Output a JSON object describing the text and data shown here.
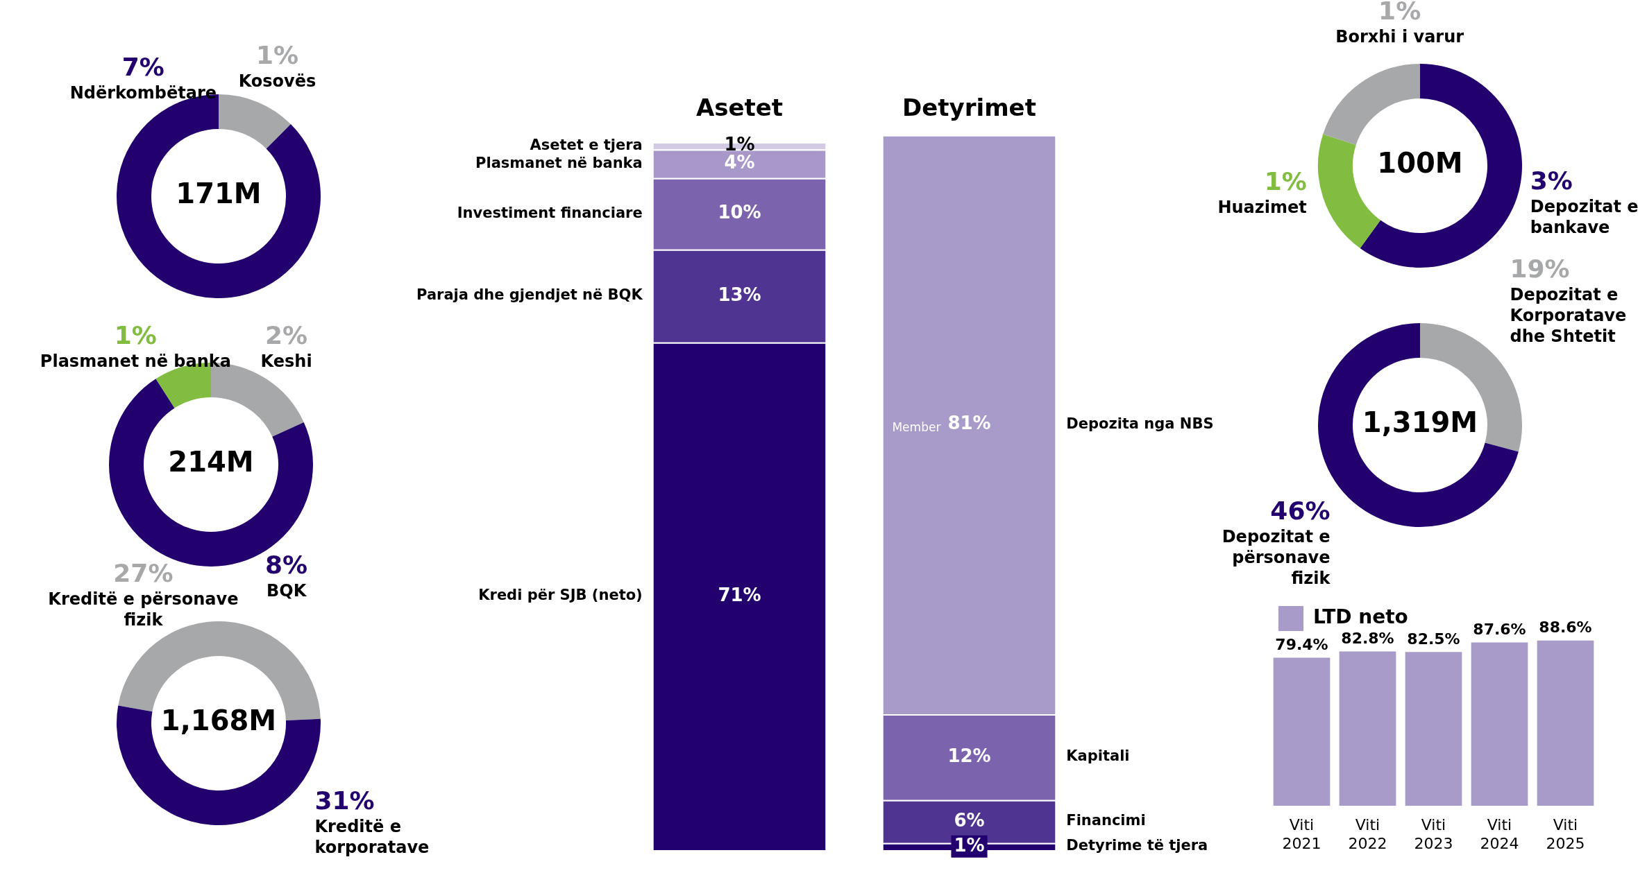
{
  "chart_data": [
    {
      "type": "donut",
      "title": "171M",
      "categories": [
        "Kosovës",
        "Ndërkombëtare"
      ],
      "values": [
        1,
        7
      ],
      "value_labels": [
        "1%",
        "7%"
      ],
      "colors": [
        "#a7a8aa",
        "#22006e"
      ]
    },
    {
      "type": "donut",
      "title": "214M",
      "categories": [
        "Keshi",
        "BQK",
        "Plasmanet në banka"
      ],
      "values": [
        2,
        8,
        1
      ],
      "value_labels": [
        "2%",
        "8%",
        "1%"
      ],
      "colors": [
        "#a7a8aa",
        "#22006e",
        "#82bd41"
      ]
    },
    {
      "type": "donut",
      "title": "1,168M",
      "categories": [
        "Kreditë e përsonave fizik",
        "Kreditë e korporatave"
      ],
      "values": [
        27,
        31
      ],
      "value_labels": [
        "27%",
        "31%"
      ],
      "colors": [
        "#a7a8aa",
        "#22006e"
      ]
    },
    {
      "type": "bar",
      "stacked": true,
      "categories": [
        "Asetet",
        "Detyrimet"
      ],
      "annotations": [
        "Member"
      ],
      "series": [
        {
          "name": "Kredi për SJB (neto)",
          "color": "#22006e",
          "values": [
            71,
            null
          ],
          "value_labels": [
            "71%",
            null
          ]
        },
        {
          "name": "Paraja dhe gjendjet në BQK",
          "color": "#4f3591",
          "values": [
            13,
            null
          ],
          "value_labels": [
            "13%",
            null
          ]
        },
        {
          "name": "Investiment financiare",
          "color": "#7b63ad",
          "values": [
            10,
            null
          ],
          "value_labels": [
            "10%",
            null
          ]
        },
        {
          "name": "Plasmanet në banka",
          "color": "#a897c9",
          "values": [
            4,
            null
          ],
          "value_labels": [
            "4%",
            null
          ]
        },
        {
          "name": "Asetet e tjera",
          "color": "#d3cbe4",
          "values": [
            1,
            null
          ],
          "value_labels": [
            "1%",
            null
          ]
        },
        {
          "name": "Detyrime të tjera",
          "color": "#22006e",
          "values": [
            null,
            1
          ],
          "value_labels": [
            null,
            "1%"
          ]
        },
        {
          "name": "Financimi",
          "color": "#4f3591",
          "values": [
            null,
            6
          ],
          "value_labels": [
            null,
            "6%"
          ]
        },
        {
          "name": "Kapitali",
          "color": "#7b63ad",
          "values": [
            null,
            12
          ],
          "value_labels": [
            null,
            "12%"
          ]
        },
        {
          "name": "Depozita nga NBS",
          "color": "#a89bc9",
          "values": [
            null,
            81
          ],
          "value_labels": [
            null,
            "81%"
          ]
        }
      ]
    },
    {
      "type": "donut",
      "title": "100M",
      "categories": [
        "Depozitat e bankave",
        "Huazimet",
        "Borxhi i varur"
      ],
      "values": [
        3,
        1,
        1
      ],
      "value_labels": [
        "3%",
        "1%",
        "1%"
      ],
      "colors": [
        "#22006e",
        "#82bd41",
        "#a7a8aa"
      ]
    },
    {
      "type": "donut",
      "title": "1,319M",
      "categories": [
        "Depozitat e Korporatave dhe Shtetit",
        "Depozitat e përsonave fizik"
      ],
      "values": [
        19,
        46
      ],
      "value_labels": [
        "19%",
        "46%"
      ],
      "colors": [
        "#a7a8aa",
        "#22006e"
      ]
    },
    {
      "type": "bar",
      "legend": "top left",
      "categories": [
        "Viti 2021",
        "Viti 2022",
        "Viti 2023",
        "Viti 2024",
        "Viti 2025"
      ],
      "series": [
        {
          "name": "LTD neto",
          "color": "#a89bc9",
          "values": [
            79.4,
            82.8,
            82.5,
            87.6,
            88.6
          ],
          "value_labels": [
            "79.4%",
            "82.8%",
            "82.5%",
            "87.6%",
            "88.6%"
          ]
        }
      ]
    }
  ]
}
